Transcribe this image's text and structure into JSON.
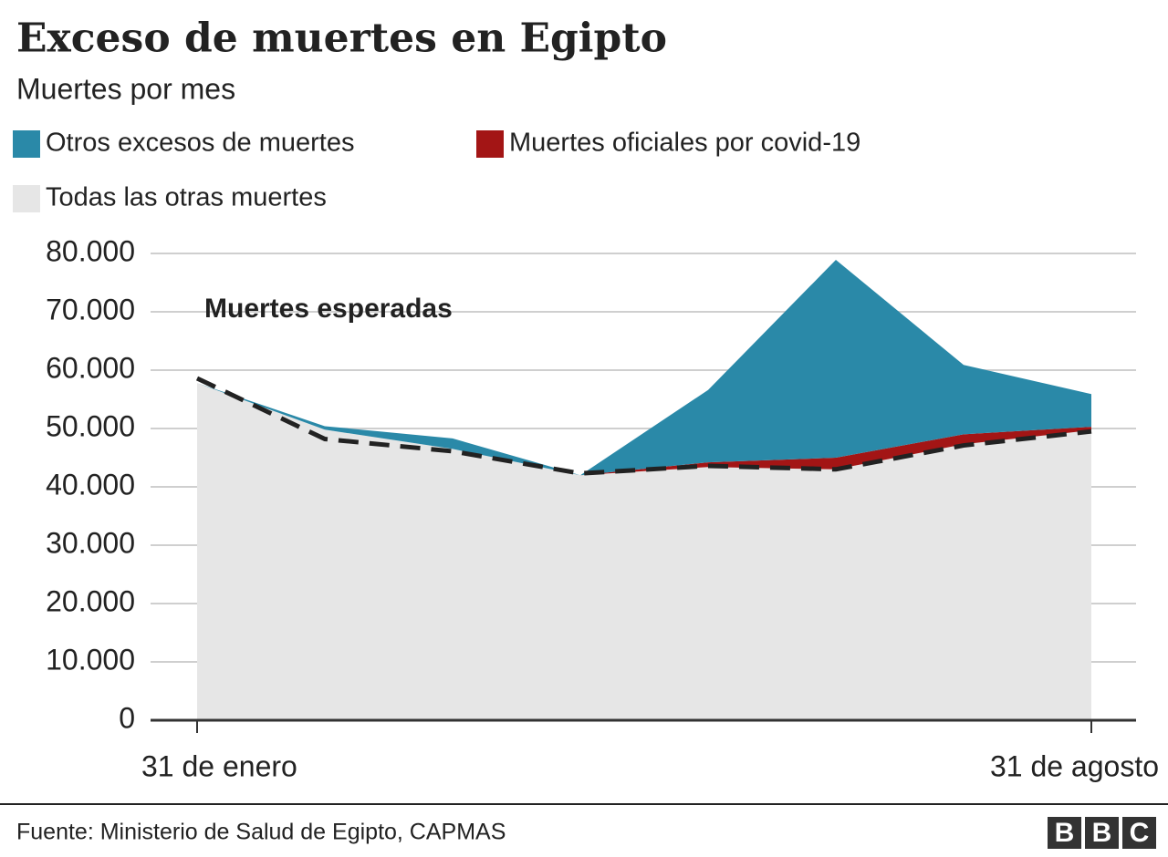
{
  "chart_data": {
    "type": "stacked_area",
    "title": "Exceso de muertes en Egipto",
    "subtitle": "Muertes por mes",
    "categories": [
      "31 de enero",
      null,
      null,
      null,
      null,
      null,
      null,
      "31 de agosto"
    ],
    "series": [
      {
        "name": "Otros excesos de muertes",
        "color": "#2a89a8",
        "values": [
          0,
          600,
          1800,
          0,
          12400,
          33900,
          11900,
          5600
        ]
      },
      {
        "name": "Muertes oficiales por covid-19",
        "color": "#a31515",
        "values": [
          0,
          0,
          0,
          0,
          800,
          2000,
          1700,
          600
        ]
      },
      {
        "name": "Todas las otras muertes",
        "color": "#e6e6e6",
        "values": [
          57800,
          49800,
          46500,
          42000,
          43400,
          43000,
          47300,
          49700
        ]
      }
    ],
    "expected": {
      "name": "Muertes esperadas",
      "color": "#222222",
      "values": [
        58600,
        48200,
        46100,
        42300,
        43600,
        43000,
        47100,
        49500
      ]
    },
    "ylim": [
      0,
      80000
    ],
    "yticks": [
      0,
      {
        "value": 10000,
        "label": "10.000"
      },
      {
        "value": 20000,
        "label": "20.000"
      },
      {
        "value": 30000,
        "label": "30.000"
      },
      {
        "value": 40000,
        "label": "40.000"
      },
      {
        "value": 50000,
        "label": "50.000"
      },
      {
        "value": 60000,
        "label": "60.000"
      },
      {
        "value": 70000,
        "label": "70.000"
      },
      {
        "value": 80000,
        "label": "80.000"
      }
    ],
    "grid": true,
    "source": "Fuente: Ministerio de Salud de Egipto, CAPMAS",
    "logo": [
      "B",
      "B",
      "C"
    ]
  }
}
